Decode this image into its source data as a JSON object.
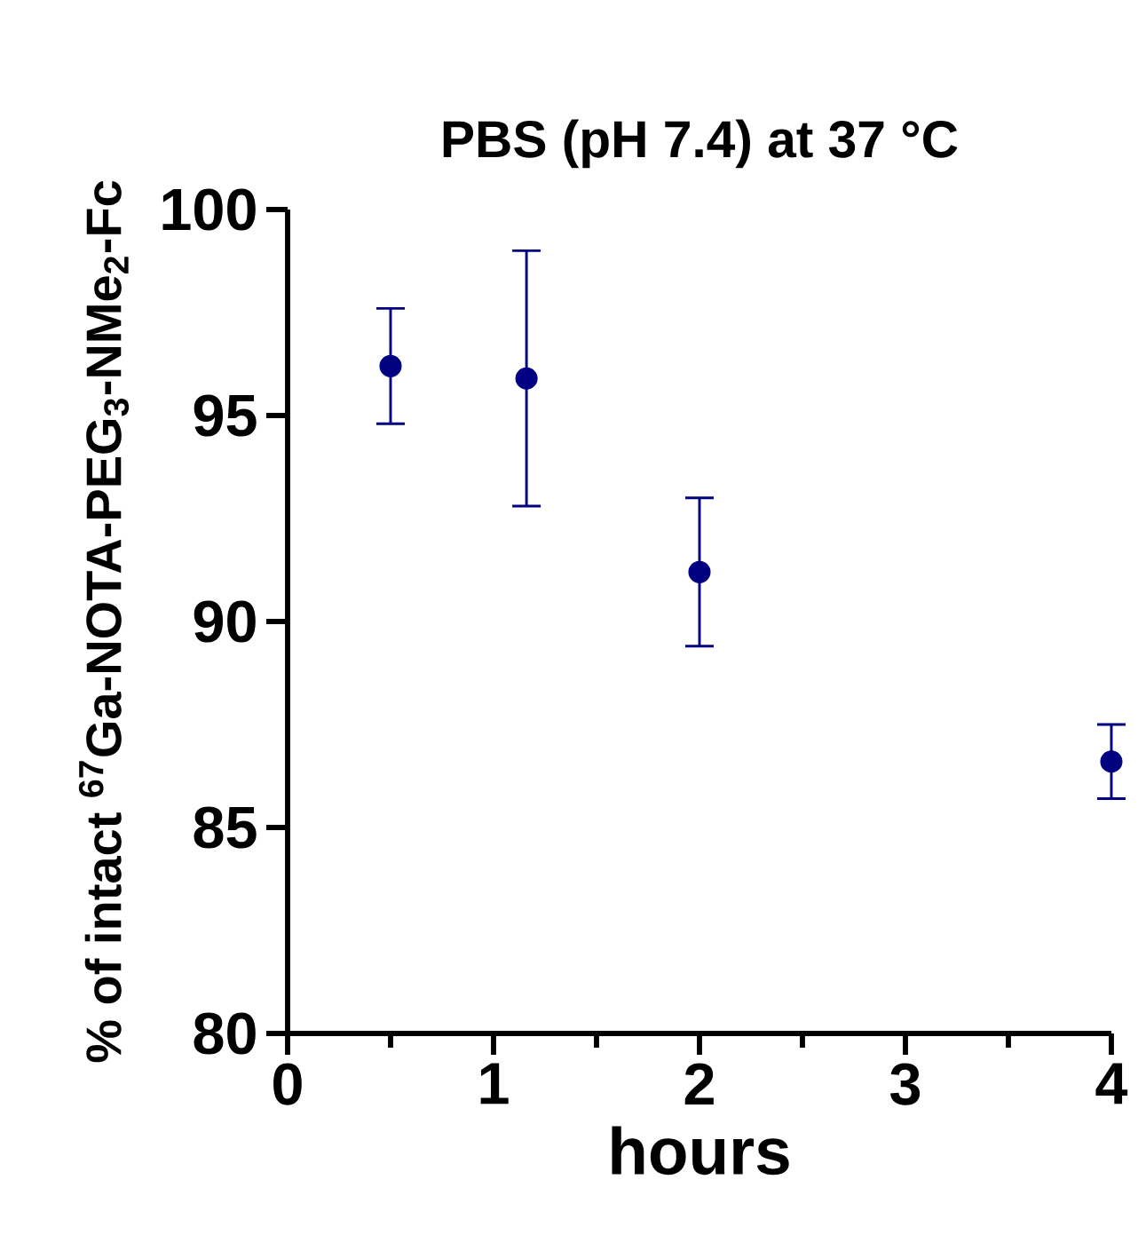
{
  "chart_data": {
    "type": "scatter",
    "title": "PBS (pH 7.4) at 37 °C",
    "xlabel": "hours",
    "ylabel": "% of intact $^{67}$Ga-NOTA-PEG$_{3}$-NMe$_{2}$-Fc",
    "x": [
      0.5,
      1.16,
      2,
      4
    ],
    "series": [
      {
        "color": "#000080",
        "values": [
          96.2,
          95.9,
          91.2,
          86.6
        ],
        "errors": [
          1.4,
          3.1,
          1.8,
          0.9
        ]
      }
    ],
    "marker": "circle",
    "xlim": [
      0,
      4
    ],
    "ylim": [
      80,
      100
    ],
    "xticks": [
      0,
      {
        "value": 0.5,
        "label": null
      },
      1,
      {
        "value": 1.5,
        "label": null
      },
      2,
      {
        "value": 2.5,
        "label": null
      },
      3,
      {
        "value": 3.5,
        "label": null
      },
      4
    ],
    "yticks": [
      80,
      85,
      90,
      95,
      100
    ]
  }
}
